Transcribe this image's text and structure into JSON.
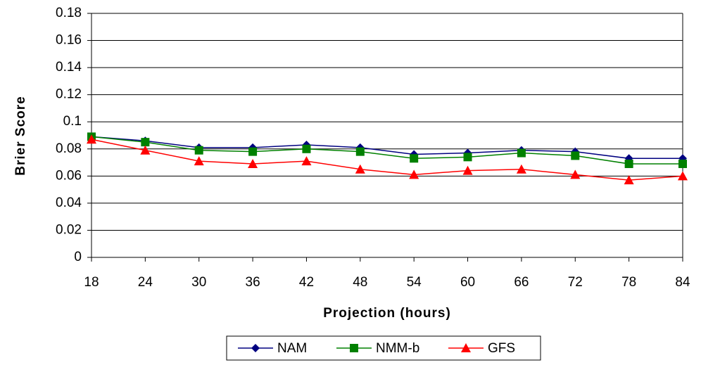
{
  "chart_data": {
    "type": "line",
    "x_label": "Projection (hours)",
    "y_label": "Brier Score",
    "x": [
      18,
      24,
      30,
      36,
      42,
      48,
      54,
      60,
      66,
      72,
      78,
      84
    ],
    "series": [
      {
        "name": "NAM",
        "color": "#000080",
        "marker": "diamond",
        "values": [
          0.089,
          0.086,
          0.081,
          0.081,
          0.083,
          0.081,
          0.076,
          0.077,
          0.079,
          0.078,
          0.073,
          0.073
        ]
      },
      {
        "name": "NMM-b",
        "color": "#008000",
        "marker": "square",
        "values": [
          0.089,
          0.085,
          0.079,
          0.078,
          0.08,
          0.078,
          0.073,
          0.074,
          0.077,
          0.075,
          0.069,
          0.069
        ]
      },
      {
        "name": "GFS",
        "color": "#ff0000",
        "marker": "triangle",
        "values": [
          0.087,
          0.079,
          0.071,
          0.069,
          0.071,
          0.065,
          0.061,
          0.064,
          0.065,
          0.061,
          0.057,
          0.06
        ]
      }
    ],
    "xlim": [
      18,
      84
    ],
    "xticks": [
      18,
      24,
      30,
      36,
      42,
      48,
      54,
      60,
      66,
      72,
      78,
      84
    ],
    "ylim": [
      0,
      0.18
    ],
    "yticks": [
      0,
      0.02,
      0.04,
      0.06,
      0.08,
      0.1,
      0.12,
      0.14,
      0.16,
      0.18
    ],
    "grid": true,
    "legend": "bottom"
  }
}
